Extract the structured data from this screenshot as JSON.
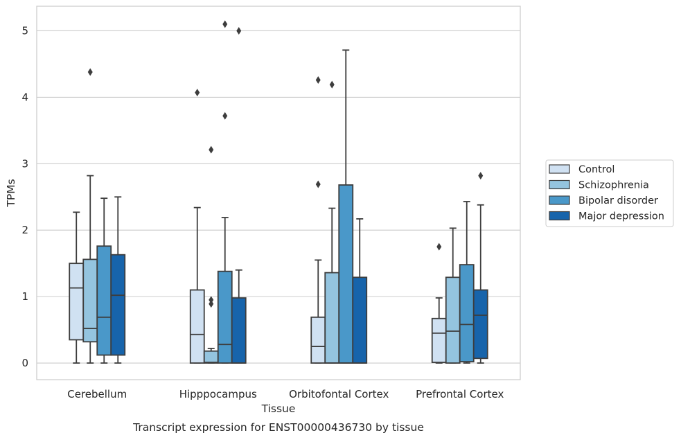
{
  "caption": "Transcript expression for ENST00000436730 by tissue",
  "chart_data": {
    "type": "box",
    "xlabel": "Tissue",
    "ylabel": "TPMs",
    "ylim": [
      -0.25,
      5.37
    ],
    "yticks": [
      0,
      1,
      2,
      3,
      4,
      5
    ],
    "grid": "horizontal",
    "legend_position": "right",
    "categories": [
      "Cerebellum",
      "Hipppocampus",
      "Orbitofontal Cortex",
      "Prefrontal Cortex"
    ],
    "series": [
      {
        "name": "Control",
        "color": "#d0e1f2",
        "boxes": [
          {
            "whisker_low": 0,
            "q1": 0.35,
            "median": 1.13,
            "q3": 1.5,
            "whisker_high": 2.27,
            "outliers": []
          },
          {
            "whisker_low": 0,
            "q1": 0,
            "median": 0.43,
            "q3": 1.1,
            "whisker_high": 2.34,
            "outliers": [
              4.07
            ]
          },
          {
            "whisker_low": 0,
            "q1": 0,
            "median": 0.25,
            "q3": 0.69,
            "whisker_high": 1.55,
            "outliers": [
              2.69,
              4.26
            ]
          },
          {
            "whisker_low": 0,
            "q1": 0.01,
            "median": 0.45,
            "q3": 0.67,
            "whisker_high": 0.98,
            "outliers": [
              1.75
            ]
          }
        ]
      },
      {
        "name": "Schizophrenia",
        "color": "#94c4df",
        "boxes": [
          {
            "whisker_low": 0,
            "q1": 0.32,
            "median": 0.52,
            "q3": 1.56,
            "whisker_high": 2.82,
            "outliers": [
              4.38
            ]
          },
          {
            "whisker_low": 0,
            "q1": 0,
            "median": 0.01,
            "q3": 0.18,
            "whisker_high": 0.22,
            "outliers": [
              0.89,
              0.95,
              3.21
            ]
          },
          {
            "whisker_low": 0,
            "q1": 0,
            "median": 0,
            "q3": 1.36,
            "whisker_high": 2.33,
            "outliers": [
              4.19
            ]
          },
          {
            "whisker_low": 0,
            "q1": 0,
            "median": 0.48,
            "q3": 1.29,
            "whisker_high": 2.03,
            "outliers": []
          }
        ]
      },
      {
        "name": "Bipolar disorder",
        "color": "#4a98c9",
        "boxes": [
          {
            "whisker_low": 0,
            "q1": 0.12,
            "median": 0.69,
            "q3": 1.76,
            "whisker_high": 2.48,
            "outliers": []
          },
          {
            "whisker_low": 0,
            "q1": 0,
            "median": 0.28,
            "q3": 1.38,
            "whisker_high": 2.19,
            "outliers": [
              3.72,
              5.1
            ]
          },
          {
            "whisker_low": 0,
            "q1": 0,
            "median": 0,
            "q3": 2.68,
            "whisker_high": 4.71,
            "outliers": []
          },
          {
            "whisker_low": 0,
            "q1": 0.02,
            "median": 0.58,
            "q3": 1.48,
            "whisker_high": 2.43,
            "outliers": []
          }
        ]
      },
      {
        "name": "Major depression",
        "color": "#1764ab",
        "boxes": [
          {
            "whisker_low": 0,
            "q1": 0.12,
            "median": 1.02,
            "q3": 1.63,
            "whisker_high": 2.5,
            "outliers": []
          },
          {
            "whisker_low": 0,
            "q1": 0,
            "median": 0,
            "q3": 0.98,
            "whisker_high": 1.4,
            "outliers": [
              5.0
            ]
          },
          {
            "whisker_low": 0,
            "q1": 0,
            "median": 0,
            "q3": 1.29,
            "whisker_high": 2.17,
            "outliers": []
          },
          {
            "whisker_low": 0,
            "q1": 0.07,
            "median": 0.72,
            "q3": 1.1,
            "whisker_high": 2.38,
            "outliers": [
              2.82
            ]
          }
        ]
      }
    ]
  }
}
